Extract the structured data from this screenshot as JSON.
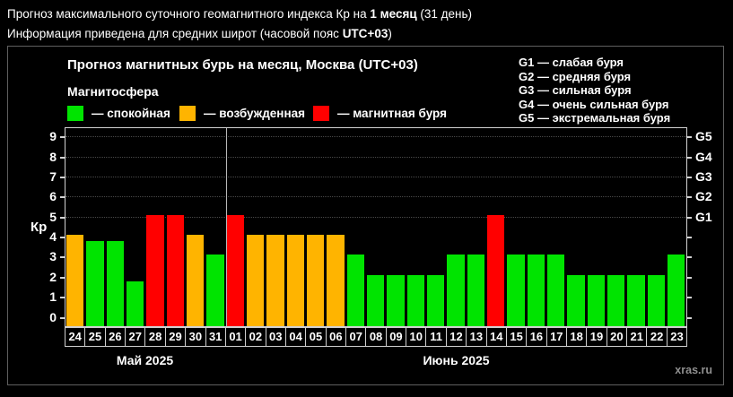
{
  "page": {
    "header_line1": {
      "prefix": "Прогноз максимального суточного геомагнитного индекса Кр на ",
      "bold": "1 месяц",
      "suffix": " (31 день)"
    },
    "header_line2": {
      "prefix": "Информация приведена для средних широт (часовой пояс ",
      "bold": "UTC+03",
      "suffix": ")"
    },
    "watermark": "xras.ru"
  },
  "chart_data": {
    "type": "bar",
    "title": "Прогноз магнитных бурь на месяц, Москва (UTC+03)",
    "legend_title": "Магнитосфера",
    "legend": [
      {
        "state": "quiet",
        "label": "— спокойная",
        "color": "#00e400"
      },
      {
        "state": "excited",
        "label": "— возбужденная",
        "color": "#ffb400"
      },
      {
        "state": "storm",
        "label": "— магнитная буря",
        "color": "#ff0000"
      }
    ],
    "g_scale_legend": [
      "G1 — слабая буря",
      "G2 — средняя буря",
      "G3 — сильная буря",
      "G4 — очень сильная буря",
      "G5 — экстремальная буря"
    ],
    "ylabel": "Кр",
    "ylim": [
      0,
      9
    ],
    "yticks": [
      0,
      1,
      2,
      3,
      4,
      5,
      6,
      7,
      8,
      9
    ],
    "gridlines_at": [
      5,
      6,
      7,
      8,
      9
    ],
    "right_axis_labels": [
      {
        "kp": 5,
        "label": "G1"
      },
      {
        "kp": 6,
        "label": "G2"
      },
      {
        "kp": 7,
        "label": "G3"
      },
      {
        "kp": 8,
        "label": "G4"
      },
      {
        "kp": 9,
        "label": "G5"
      }
    ],
    "categories": [
      "24",
      "25",
      "26",
      "27",
      "28",
      "29",
      "30",
      "31",
      "01",
      "02",
      "03",
      "04",
      "05",
      "06",
      "07",
      "08",
      "09",
      "10",
      "11",
      "12",
      "13",
      "14",
      "15",
      "16",
      "17",
      "18",
      "19",
      "20",
      "21",
      "22",
      "23"
    ],
    "values": [
      4,
      3.7,
      3.7,
      1.7,
      5,
      5,
      4,
      3,
      5,
      4,
      4,
      4,
      4,
      4,
      3,
      2,
      2,
      2,
      2,
      3,
      3,
      5,
      3,
      3,
      3,
      2,
      2,
      2,
      2,
      2,
      3
    ],
    "states": [
      "excited",
      "quiet",
      "quiet",
      "quiet",
      "storm",
      "storm",
      "excited",
      "quiet",
      "storm",
      "excited",
      "excited",
      "excited",
      "excited",
      "excited",
      "quiet",
      "quiet",
      "quiet",
      "quiet",
      "quiet",
      "quiet",
      "quiet",
      "storm",
      "quiet",
      "quiet",
      "quiet",
      "quiet",
      "quiet",
      "quiet",
      "quiet",
      "quiet",
      "quiet"
    ],
    "months": [
      {
        "label": "Май 2025",
        "days": 8
      },
      {
        "label": "Июнь 2025",
        "days": 23
      }
    ],
    "legend_position": "top",
    "grid": "dotted horizontal at storm levels only"
  }
}
